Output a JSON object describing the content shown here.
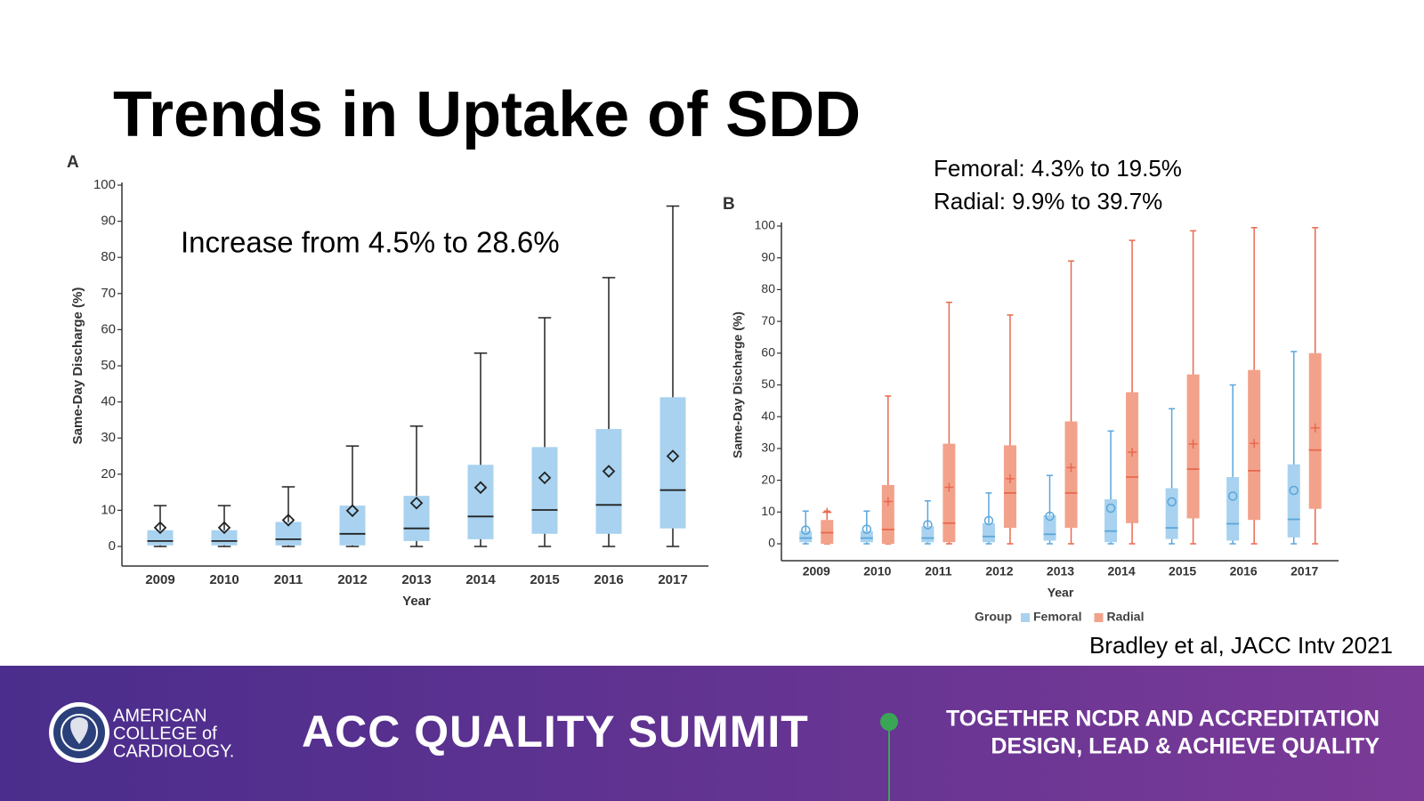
{
  "title": "Trends in Uptake of SDD",
  "source": "Bradley et al, JACC Intv 2021",
  "footer": {
    "org_lines": [
      "AMERICAN",
      "COLLEGE of",
      "CARDIOLOGY."
    ],
    "event": "ACC QUALITY SUMMIT",
    "tagline": [
      "TOGETHER NCDR AND ACCREDITATION",
      "DESIGN, LEAD & ACHIEVE QUALITY"
    ]
  },
  "chart_data": [
    {
      "type": "box",
      "panel_label": "A",
      "annotations": [
        "Increase from 4.5% to 28.6%"
      ],
      "y_label": "Same-Day Discharge (%)",
      "x_label": "Year",
      "categories": [
        "2009",
        "2010",
        "2011",
        "2012",
        "2013",
        "2014",
        "2015",
        "2016",
        "2017"
      ],
      "ylim": [
        0,
        100
      ],
      "yticks": [
        0,
        10,
        20,
        30,
        40,
        50,
        60,
        70,
        80,
        90,
        100
      ],
      "series": [
        {
          "color": "#a8d2ef",
          "line_color": "#222222",
          "mean_marker": "diamond",
          "min": [
            0,
            0,
            0,
            0,
            0,
            0,
            0,
            0,
            0
          ],
          "q1": [
            0.3,
            0.3,
            0.3,
            0.3,
            1.5,
            2,
            3.5,
            3.5,
            5
          ],
          "median": [
            1.5,
            1.5,
            2,
            3.5,
            5,
            8.3,
            10.1,
            11.5,
            15.6
          ],
          "q3": [
            4.5,
            4.5,
            6.8,
            11.3,
            14,
            22.6,
            27.5,
            32.5,
            41.3
          ],
          "max": [
            11.3,
            11.3,
            16.5,
            27.8,
            33.3,
            53.5,
            63.3,
            74.4,
            94.2
          ],
          "mean": [
            5.2,
            5.2,
            7.3,
            9.9,
            12,
            16.3,
            19,
            20.8,
            25
          ]
        }
      ]
    },
    {
      "type": "box",
      "panel_label": "B",
      "annotations": [
        "Femoral: 4.3% to 19.5%",
        "Radial: 9.9% to 39.7%"
      ],
      "y_label": "Same-Day Discharge (%)",
      "x_label": "Year",
      "legend_title": "Group",
      "categories": [
        "2009",
        "2010",
        "2011",
        "2012",
        "2013",
        "2014",
        "2015",
        "2016",
        "2017"
      ],
      "ylim": [
        0,
        100
      ],
      "yticks": [
        0,
        10,
        20,
        30,
        40,
        50,
        60,
        70,
        80,
        90,
        100
      ],
      "series": [
        {
          "name": "Femoral",
          "color": "#a8d2ef",
          "line_color": "#5aa6da",
          "mean_marker": "circle",
          "min": [
            0,
            0,
            0,
            0,
            0,
            0,
            0,
            0,
            0
          ],
          "q1": [
            0.5,
            0.5,
            0.5,
            0.5,
            1,
            0.5,
            1.5,
            1,
            2
          ],
          "median": [
            1.8,
            1.8,
            1.8,
            2.3,
            3,
            4,
            5,
            6.3,
            7.7
          ],
          "q3": [
            4,
            4,
            5.5,
            6.5,
            9,
            14,
            17.5,
            21,
            25
          ],
          "max": [
            10.3,
            10.3,
            13.5,
            16,
            21.5,
            35.5,
            42.5,
            50,
            60.5
          ],
          "mean": [
            4.3,
            4.6,
            6,
            7.3,
            8.7,
            11.2,
            13.2,
            15,
            16.8
          ]
        },
        {
          "name": "Radial",
          "color": "#f2a28a",
          "line_color": "#e8694f",
          "mean_marker": "plus",
          "min": [
            0,
            0,
            0,
            0,
            0,
            0,
            0,
            0,
            0
          ],
          "q1": [
            0,
            0,
            0.5,
            5,
            5,
            6.5,
            8,
            7.5,
            11
          ],
          "median": [
            3.5,
            4.5,
            6.5,
            16,
            16,
            21,
            23.5,
            23,
            29.5
          ],
          "q3": [
            7.5,
            18.5,
            31.5,
            31,
            38.5,
            47.7,
            53.3,
            54.7,
            60
          ],
          "max": [
            10.3,
            46.5,
            76,
            72,
            89,
            95.5,
            98.5,
            99.5,
            99.5
          ],
          "mean": [
            9.9,
            13.3,
            17.8,
            20.5,
            24,
            28.8,
            31.4,
            31.6,
            36.5
          ]
        }
      ]
    }
  ]
}
